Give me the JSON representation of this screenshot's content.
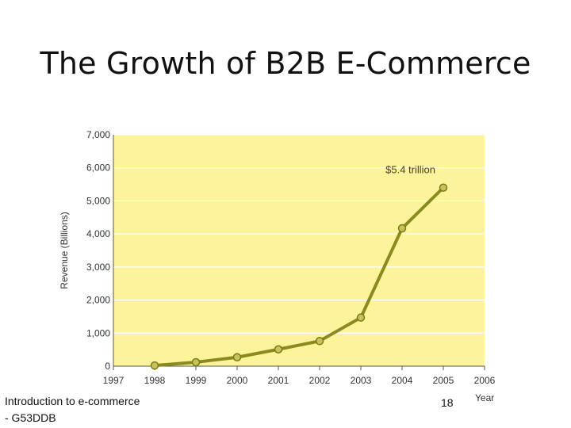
{
  "slide": {
    "title": "The Growth of B2B E-Commerce"
  },
  "footer": {
    "line1": "Introduction to e-commerce",
    "line2": "- G53DDB",
    "page_number": "18"
  },
  "colors": {
    "plot_background": "#fdf39a",
    "line": "#8a8a1e",
    "marker_fill": "#c9c25a",
    "marker_stroke": "#7a7a18",
    "gridline": "#ffffff",
    "axis": "#555555"
  },
  "chart_data": {
    "type": "line",
    "title": "",
    "xlabel": "Year",
    "ylabel": "Revenue (Billions)",
    "x_ticks": [
      "1997",
      "1998",
      "1999",
      "2000",
      "2001",
      "2002",
      "2003",
      "2004",
      "2005",
      "2006"
    ],
    "y_ticks": [
      "0",
      "1,000",
      "2,000",
      "3,000",
      "4,000",
      "5,000",
      "6,000",
      "7,000"
    ],
    "xlim": [
      1997,
      2006
    ],
    "ylim": [
      0,
      7000
    ],
    "grid": true,
    "series": [
      {
        "x": [
          1998,
          1999,
          2000,
          2001,
          2002,
          2003,
          2004,
          2005
        ],
        "values": [
          20,
          120,
          270,
          510,
          760,
          1470,
          4170,
          5400
        ]
      }
    ],
    "annotations": [
      {
        "text": "$5.4 trillion",
        "x": 2005,
        "y": 5400
      }
    ]
  }
}
